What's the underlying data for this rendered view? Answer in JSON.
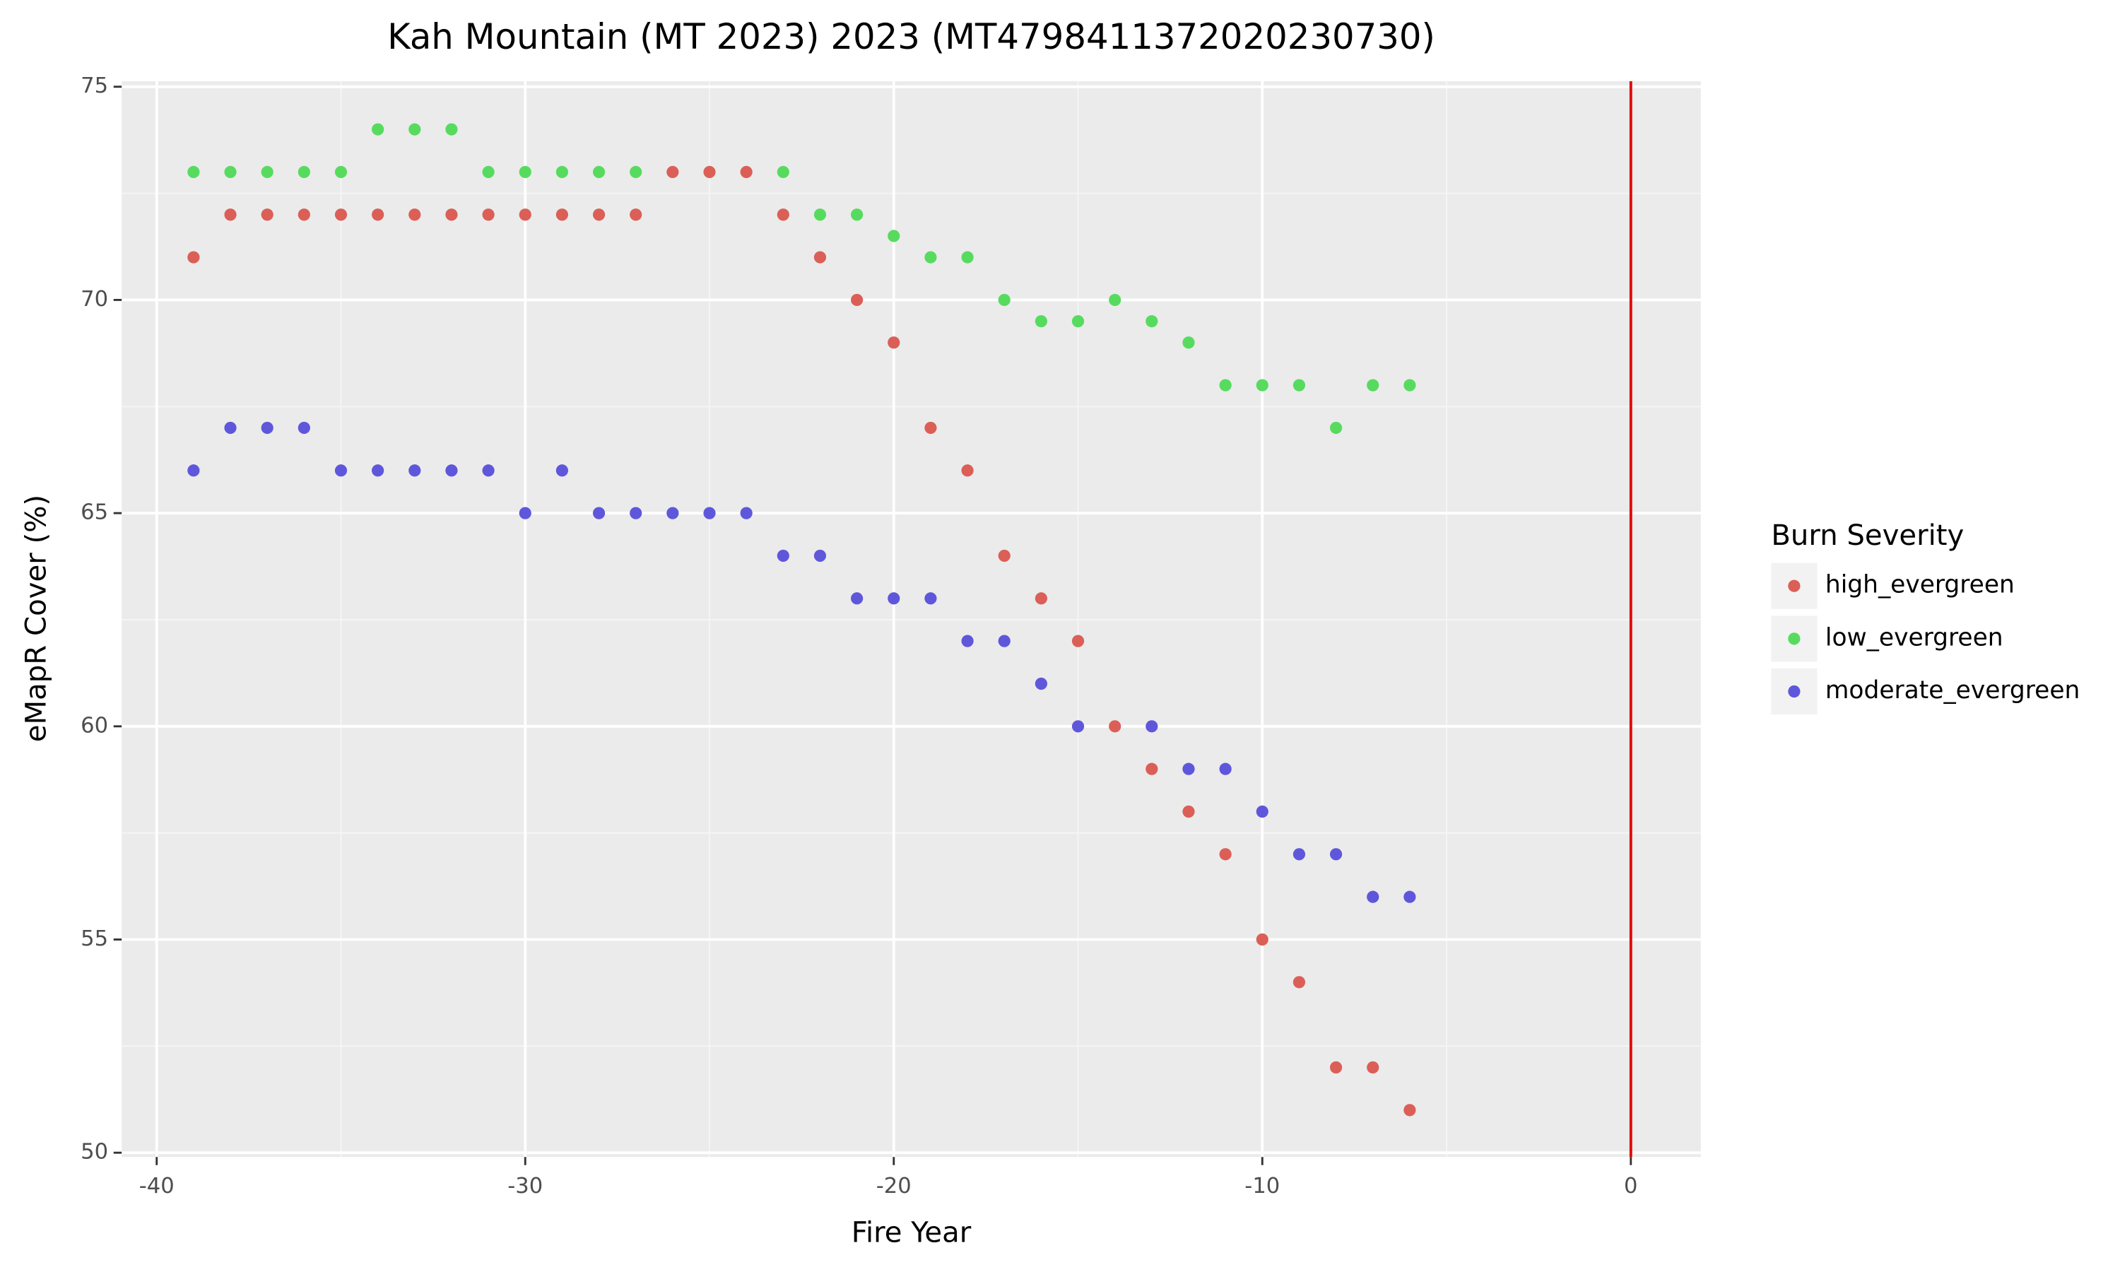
{
  "chart_data": {
    "type": "scatter",
    "title": "Kah Mountain (MT 2023) 2023 (MT4798411372020230730)",
    "x_label": "Fire Year",
    "y_label": "eMapR Cover (%)",
    "legend_title": "Burn Severity",
    "legend_position": "right",
    "x": [
      -39,
      -38,
      -37,
      -36,
      -35,
      -34,
      -33,
      -32,
      -31,
      -30,
      -29,
      -28,
      -27,
      -26,
      -25,
      -24,
      -23,
      -22,
      -21,
      -20,
      -19,
      -18,
      -17,
      -16,
      -15,
      -14,
      -13,
      -12,
      -11,
      -10,
      -9,
      -8,
      -7,
      -6
    ],
    "series": [
      {
        "name": "high_evergreen",
        "color": "#db5f57",
        "values": [
          71,
          72,
          72,
          72,
          72,
          72,
          72,
          72,
          72,
          72,
          72,
          72,
          72,
          73,
          73,
          73,
          72,
          71,
          70,
          69,
          67,
          66,
          64,
          63,
          62,
          60,
          59,
          58,
          57,
          55,
          54,
          52,
          52,
          51
        ]
      },
      {
        "name": "low_evergreen",
        "color": "#57db5f",
        "values": [
          73,
          73,
          73,
          73,
          73,
          74,
          74,
          74,
          73,
          73,
          73,
          73,
          73,
          null,
          null,
          null,
          73,
          72,
          72,
          71.5,
          71,
          71,
          70,
          69.5,
          69.5,
          70,
          69.5,
          69,
          68,
          68,
          68,
          67,
          68,
          68
        ]
      },
      {
        "name": "moderate_evergreen",
        "color": "#5f57db",
        "values": [
          66,
          67,
          67,
          67,
          66,
          66,
          66,
          66,
          66,
          65,
          66,
          65,
          65,
          65,
          65,
          65,
          64,
          64,
          63,
          63,
          63,
          62,
          62,
          61,
          60,
          null,
          60,
          59,
          59,
          58,
          57,
          57,
          56,
          56
        ]
      }
    ],
    "xlim": [
      -40.95,
      1.9
    ],
    "xticks": [
      -40,
      -30,
      -20,
      -10,
      0
    ],
    "ylim": [
      49.9,
      75.13
    ],
    "yticks": [
      50,
      55,
      60,
      65,
      70,
      75
    ],
    "grid": true,
    "vline": {
      "x": 0,
      "color": "#e00000"
    }
  }
}
